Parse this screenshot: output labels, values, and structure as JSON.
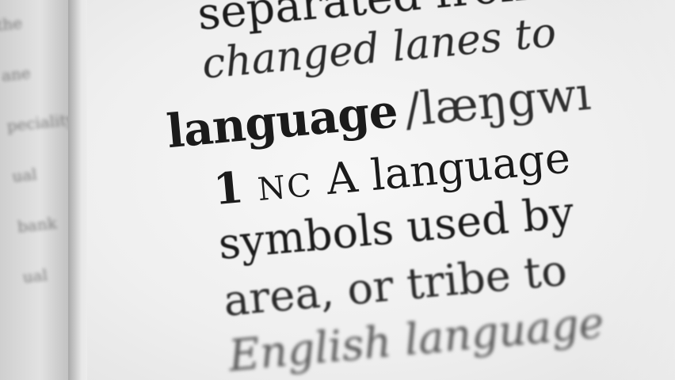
{
  "left_page": {
    "blurred_words": [
      "the",
      "ane",
      "peciality",
      "ual",
      "bank",
      "ual"
    ]
  },
  "entry": {
    "line1": "separated from t",
    "line2": "changed lanes to",
    "headword": "language",
    "pronunciation": "/læŋgwı",
    "sense_number": "1",
    "grammar_label": "NC",
    "line4_text": "A language",
    "line5": "symbols used by",
    "line6": "area, or tribe to",
    "line7": "English language"
  },
  "colors": {
    "ink": "#1b1b1b",
    "paper": "#f2f2f2",
    "gutter_shadow": "#a9a9a9"
  }
}
